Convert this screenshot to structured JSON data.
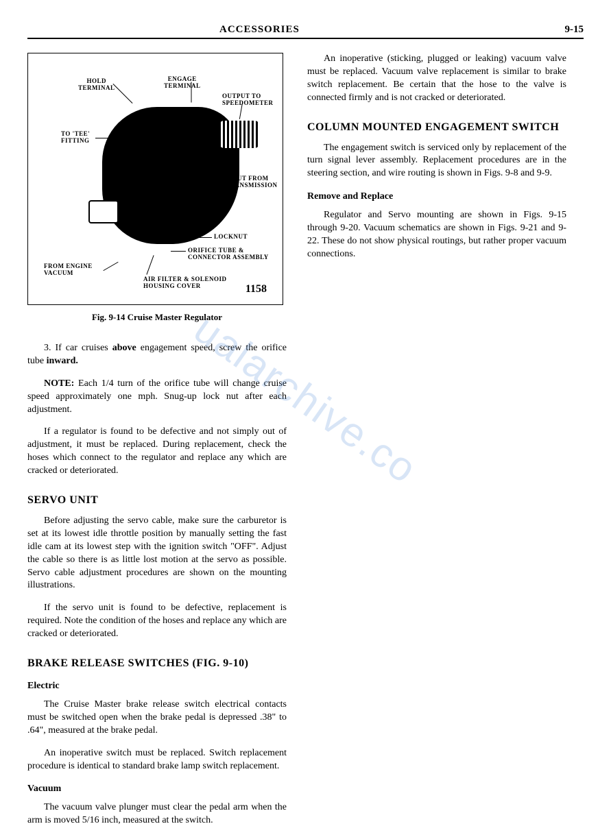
{
  "header": {
    "title": "ACCESSORIES",
    "page_number": "9-15"
  },
  "figure": {
    "number": "1158",
    "caption": "Fig. 9-14 Cruise Master Regulator",
    "labels": {
      "hold_terminal": "HOLD\nTERMINAL",
      "engage_terminal": "ENGAGE\nTERMINAL",
      "output_speedo": "OUTPUT TO\nSPEEDOMETER",
      "tee_fitting": "TO 'TEE'\nFITTING",
      "input_trans": "INPUT FROM\nTRANSMISSION",
      "locknut": "LOCKNUT",
      "orifice_tube": "ORIFICE TUBE &\nCONNECTOR ASSEMBLY",
      "engine_vacuum": "FROM ENGINE\nVACUUM",
      "air_filter": "AIR FILTER & SOLENOID\nHOUSING COVER"
    }
  },
  "left_column": {
    "para1_prefix": "3. If car cruises ",
    "para1_bold1": "above",
    "para1_mid": " engagement speed, screw the orifice tube ",
    "para1_bold2": "inward.",
    "note_label": "NOTE:",
    "note_text": " Each 1/4 turn of the orifice tube will change cruise speed approximately one mph. Snug-up lock nut after each adjustment.",
    "para2": "If a regulator is found to be defective and not simply out of adjustment, it must be replaced. During replacement, check the hoses which connect to the regulator and replace any which are cracked or deteriorated.",
    "servo_heading": "SERVO UNIT",
    "servo_para1": "Before adjusting the servo cable, make sure the carburetor is set at its lowest idle throttle position by manually setting the fast idle cam at its lowest step with the ignition switch \"OFF\". Adjust the cable so there is as little lost motion at the servo as possible. Servo cable adjustment procedures are shown on the mounting illustrations.",
    "servo_para2": "If the servo unit is found to be defective, replacement is required. Note the condition of the hoses and replace any which are cracked or deteriorated.",
    "brake_heading": "BRAKE RELEASE SWITCHES (FIG. 9-10)",
    "electric_heading": "Electric",
    "electric_para1": "The Cruise Master brake release switch electrical contacts must be switched open when the brake pedal is depressed .38\" to .64\", measured at the brake pedal.",
    "electric_para2": "An inoperative switch must be replaced. Switch replacement procedure is identical to standard brake lamp switch replacement.",
    "vacuum_heading": "Vacuum",
    "vacuum_para1": "The vacuum valve plunger must clear the pedal arm when the arm is moved 5/16 inch, measured at the switch."
  },
  "right_column": {
    "para1": "An inoperative (sticking, plugged or leaking) vacuum valve must be replaced. Vacuum valve replacement is similar to brake switch replacement. Be certain that the hose to the valve is connected firmly and is not cracked or deteriorated.",
    "column_heading": "COLUMN MOUNTED ENGAGEMENT SWITCH",
    "column_para1": "The engagement switch is serviced only by replacement of the turn signal lever assembly. Replacement procedures are in the steering section, and wire routing is shown in Figs. 9-8 and 9-9.",
    "remove_heading": "Remove and Replace",
    "remove_para1": "Regulator and Servo mounting are shown in Figs. 9-15 through 9-20. Vacuum schematics are shown in Figs. 9-21 and 9-22. These do not show physical routings, but rather proper vacuum connections."
  },
  "watermark": "ualarchive.co"
}
